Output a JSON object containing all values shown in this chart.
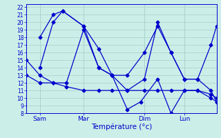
{
  "title": "Température (°c)",
  "ylabel_ticks": [
    8,
    9,
    10,
    11,
    12,
    13,
    14,
    15,
    16,
    17,
    18,
    19,
    20,
    21,
    22
  ],
  "ylim": [
    8,
    22.4
  ],
  "xlim": [
    0,
    100
  ],
  "xtick_positions": [
    7,
    30,
    62,
    83
  ],
  "xtick_labels": [
    "Sam",
    "Mar",
    "Dim",
    "Lun"
  ],
  "background_color": "#cceee8",
  "grid_color": "#aad4cc",
  "line_color": "#0000cc",
  "marker": "D",
  "marker_size": 2.5,
  "linewidth": 0.9,
  "series": [
    [
      0,
      15,
      7,
      13,
      14,
      12,
      21,
      12,
      30,
      19,
      38,
      14,
      45,
      13,
      53,
      13,
      62,
      16,
      69,
      19.5,
      76,
      16,
      83,
      12.5,
      90,
      12.5,
      97,
      11,
      100,
      9.5
    ],
    [
      0,
      13,
      7,
      12,
      14,
      12,
      21,
      11.5,
      30,
      11,
      38,
      11,
      45,
      11,
      53,
      11,
      62,
      11,
      69,
      11,
      76,
      11,
      83,
      11,
      90,
      11,
      97,
      10.5,
      100,
      10
    ],
    [
      7,
      18,
      14,
      21,
      19,
      21.5,
      30,
      19.5,
      38,
      14,
      45,
      13,
      53,
      8.5,
      60,
      9.5,
      69,
      12.5,
      76,
      8,
      83,
      11,
      90,
      11,
      97,
      10,
      100,
      9.5
    ],
    [
      7,
      14,
      14,
      20,
      19,
      21.5,
      30,
      19.5,
      38,
      16.5,
      45,
      13,
      53,
      11,
      62,
      12.5,
      69,
      20,
      76,
      16,
      83,
      12.5,
      90,
      12.5,
      97,
      17,
      100,
      19.5
    ]
  ]
}
